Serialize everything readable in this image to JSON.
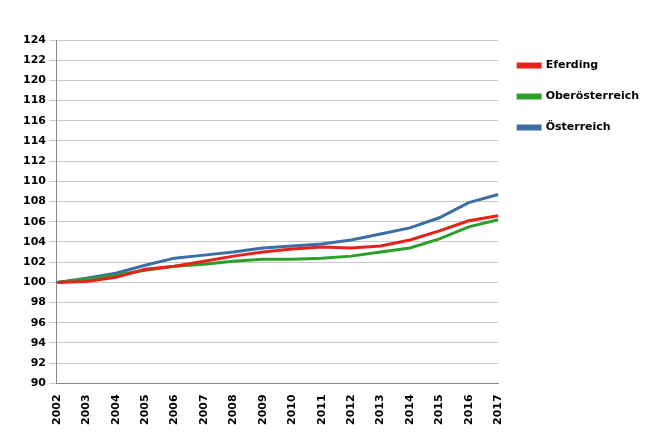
{
  "chart_data": {
    "type": "line",
    "categories": [
      "2002",
      "2003",
      "2004",
      "2005",
      "2006",
      "2007",
      "2008",
      "2009",
      "2010",
      "2011",
      "2012",
      "2013",
      "2014",
      "2015",
      "2016",
      "2017"
    ],
    "series": [
      {
        "name": "Eferding",
        "color": "#e8211a",
        "values": [
          100,
          100.1,
          100.5,
          101.3,
          101.6,
          102.1,
          102.6,
          103.0,
          103.3,
          103.5,
          103.4,
          103.6,
          104.2,
          105.1,
          106.1,
          106.6
        ]
      },
      {
        "name": "Oberösterreich",
        "color": "#2aa02a",
        "values": [
          100,
          100.3,
          100.7,
          101.2,
          101.6,
          101.8,
          102.1,
          102.3,
          102.3,
          102.4,
          102.6,
          103.0,
          103.4,
          104.3,
          105.5,
          106.2
        ]
      },
      {
        "name": "Österreich",
        "color": "#3a6ea5",
        "values": [
          100,
          100.4,
          100.9,
          101.7,
          102.4,
          102.7,
          103.0,
          103.4,
          103.6,
          103.8,
          104.2,
          104.8,
          105.4,
          106.4,
          107.9,
          108.7
        ]
      }
    ],
    "ylim": [
      90,
      124
    ],
    "yticks": [
      90,
      92,
      94,
      96,
      98,
      100,
      102,
      104,
      106,
      108,
      110,
      112,
      114,
      116,
      118,
      120,
      122,
      124
    ],
    "grid": true,
    "legend": "right"
  }
}
